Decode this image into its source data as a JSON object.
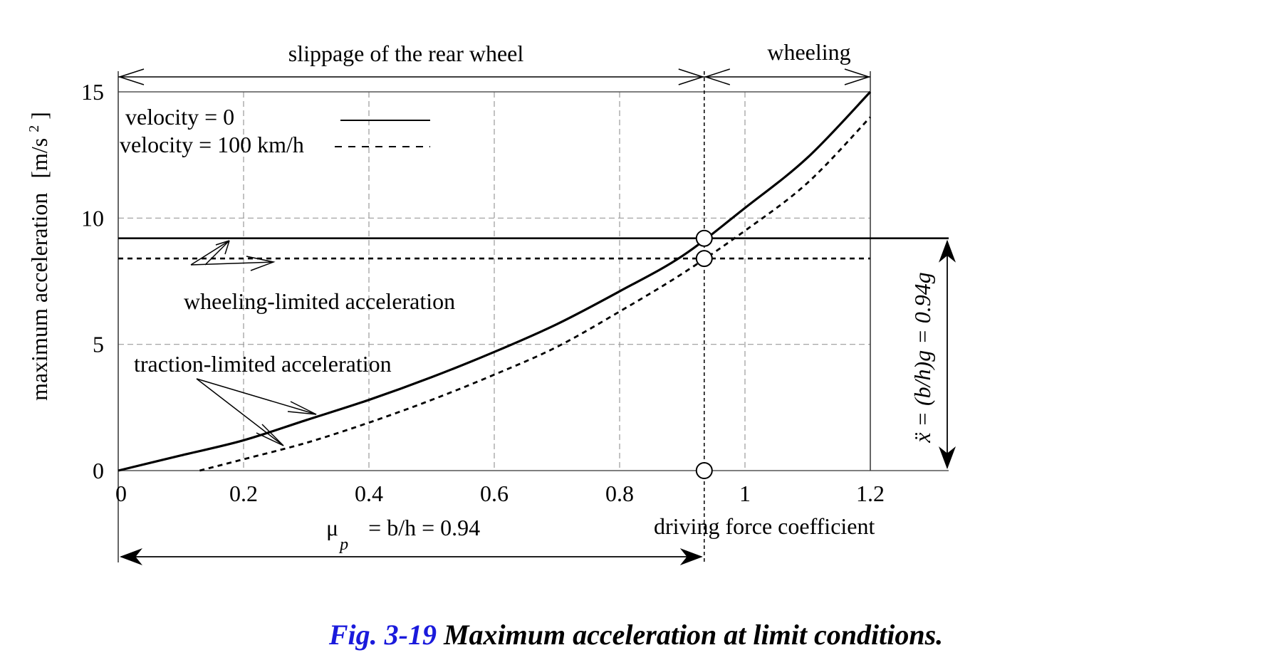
{
  "chart_data": {
    "type": "line",
    "xlabel": "driving force coefficient",
    "ylabel": "maximum acceleration",
    "ylabel_unit_open": "[m/s",
    "ylabel_unit_exp": "2",
    "ylabel_unit_close": "]",
    "xlim": [
      0,
      1.2
    ],
    "ylim": [
      0,
      15
    ],
    "x_ticks": [
      0,
      0.2,
      0.4,
      0.6,
      0.8,
      1,
      1.2
    ],
    "x_tick_labels": [
      "0",
      "0.2",
      "0.4",
      "0.6",
      "0.8",
      "1",
      "1.2"
    ],
    "y_ticks": [
      0,
      5,
      10,
      15
    ],
    "y_tick_labels": [
      "0",
      "5",
      "10",
      "15"
    ],
    "grid": true,
    "series": [
      {
        "name": "velocity = 0",
        "style": "solid",
        "x": [
          0,
          0.1,
          0.2,
          0.3,
          0.4,
          0.5,
          0.6,
          0.7,
          0.8,
          0.9,
          1.0,
          1.1,
          1.2
        ],
        "y": [
          0,
          0.6,
          1.2,
          2.0,
          2.8,
          3.7,
          4.7,
          5.8,
          7.1,
          8.5,
          10.4,
          12.4,
          15.0
        ]
      },
      {
        "name": "velocity = 100 km/h",
        "style": "dashed",
        "x": [
          0.13,
          0.2,
          0.3,
          0.4,
          0.5,
          0.6,
          0.7,
          0.8,
          0.9,
          1.0,
          1.1,
          1.2
        ],
        "y": [
          0,
          0.45,
          1.1,
          1.9,
          2.8,
          3.8,
          4.9,
          6.3,
          7.8,
          9.5,
          11.4,
          14.0
        ]
      }
    ],
    "wheeling_limits": [
      {
        "name": "velocity = 0",
        "style": "solid",
        "value": 9.2
      },
      {
        "name": "velocity = 100 km/h",
        "style": "dashed",
        "value": 8.4
      }
    ],
    "intersection_x": 0.935,
    "markers": [
      {
        "x": 0.935,
        "y": 9.2
      },
      {
        "x": 0.935,
        "y": 8.4
      },
      {
        "x": 0.935,
        "y": 0
      }
    ],
    "legend": {
      "position": "top-left",
      "entries": [
        "velocity = 0",
        "velocity = 100 km/h"
      ]
    },
    "annotations": {
      "region_slippage": "slippage of the rear wheel",
      "region_wheeling": "wheeling",
      "wheeling_limited": "wheeling-limited acceleration",
      "traction_limited": "traction-limited acceleration",
      "mu_symbol": "μ",
      "mu_subscript": "p",
      "mu_rest": "= b/h = 0.94",
      "accel_formula": "ẍ = (b/h)g = 0.94g"
    }
  },
  "caption": {
    "number": "Fig. 3-19",
    "title": "Maximum acceleration at limit conditions."
  }
}
